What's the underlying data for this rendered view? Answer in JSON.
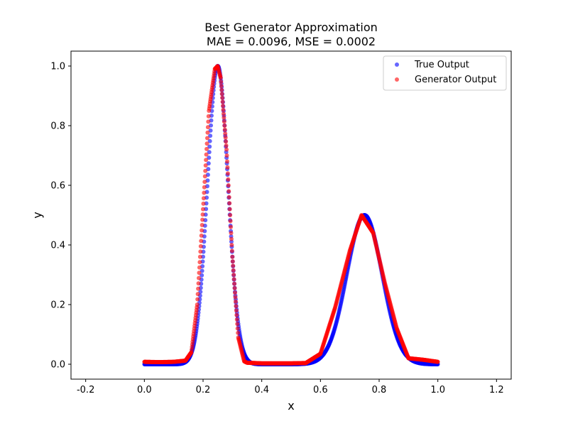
{
  "chart_data": {
    "type": "scatter",
    "title": "Best Generator Approximation",
    "subtitle": "MAE = 0.0096, MSE = 0.0002",
    "xlabel": "x",
    "ylabel": "y",
    "xlim": [
      -0.25,
      1.25
    ],
    "ylim": [
      -0.05,
      1.05
    ],
    "xticks": [
      "-0.2",
      "0.0",
      "0.2",
      "0.4",
      "0.6",
      "0.8",
      "1.0",
      "1.2"
    ],
    "yticks": [
      "0.0",
      "0.2",
      "0.4",
      "0.6",
      "0.8",
      "1.0"
    ],
    "grid": false,
    "legend_position": "top-right",
    "series": [
      {
        "name": "True Output",
        "color": "#0000ff",
        "function": "exp(-((x-0.25)^2)/(2*0.035^2)) + 0.5*exp(-((x-0.75)^2)/(2*0.06^2))",
        "x_range": [
          0,
          1
        ]
      },
      {
        "name": "Generator Output",
        "color": "#ff0000",
        "x": [
          0.0,
          0.05,
          0.1,
          0.14,
          0.16,
          0.18,
          0.2,
          0.22,
          0.24,
          0.25,
          0.26,
          0.28,
          0.3,
          0.32,
          0.34,
          0.35,
          0.4,
          0.45,
          0.5,
          0.55,
          0.6,
          0.65,
          0.7,
          0.74,
          0.78,
          0.82,
          0.86,
          0.9,
          0.95,
          1.0
        ],
        "y": [
          0.008,
          0.007,
          0.008,
          0.012,
          0.04,
          0.2,
          0.52,
          0.85,
          0.99,
          1.0,
          0.96,
          0.72,
          0.36,
          0.09,
          0.01,
          0.005,
          0.003,
          0.003,
          0.003,
          0.004,
          0.035,
          0.19,
          0.38,
          0.5,
          0.44,
          0.27,
          0.12,
          0.02,
          0.015,
          0.008
        ]
      }
    ]
  }
}
